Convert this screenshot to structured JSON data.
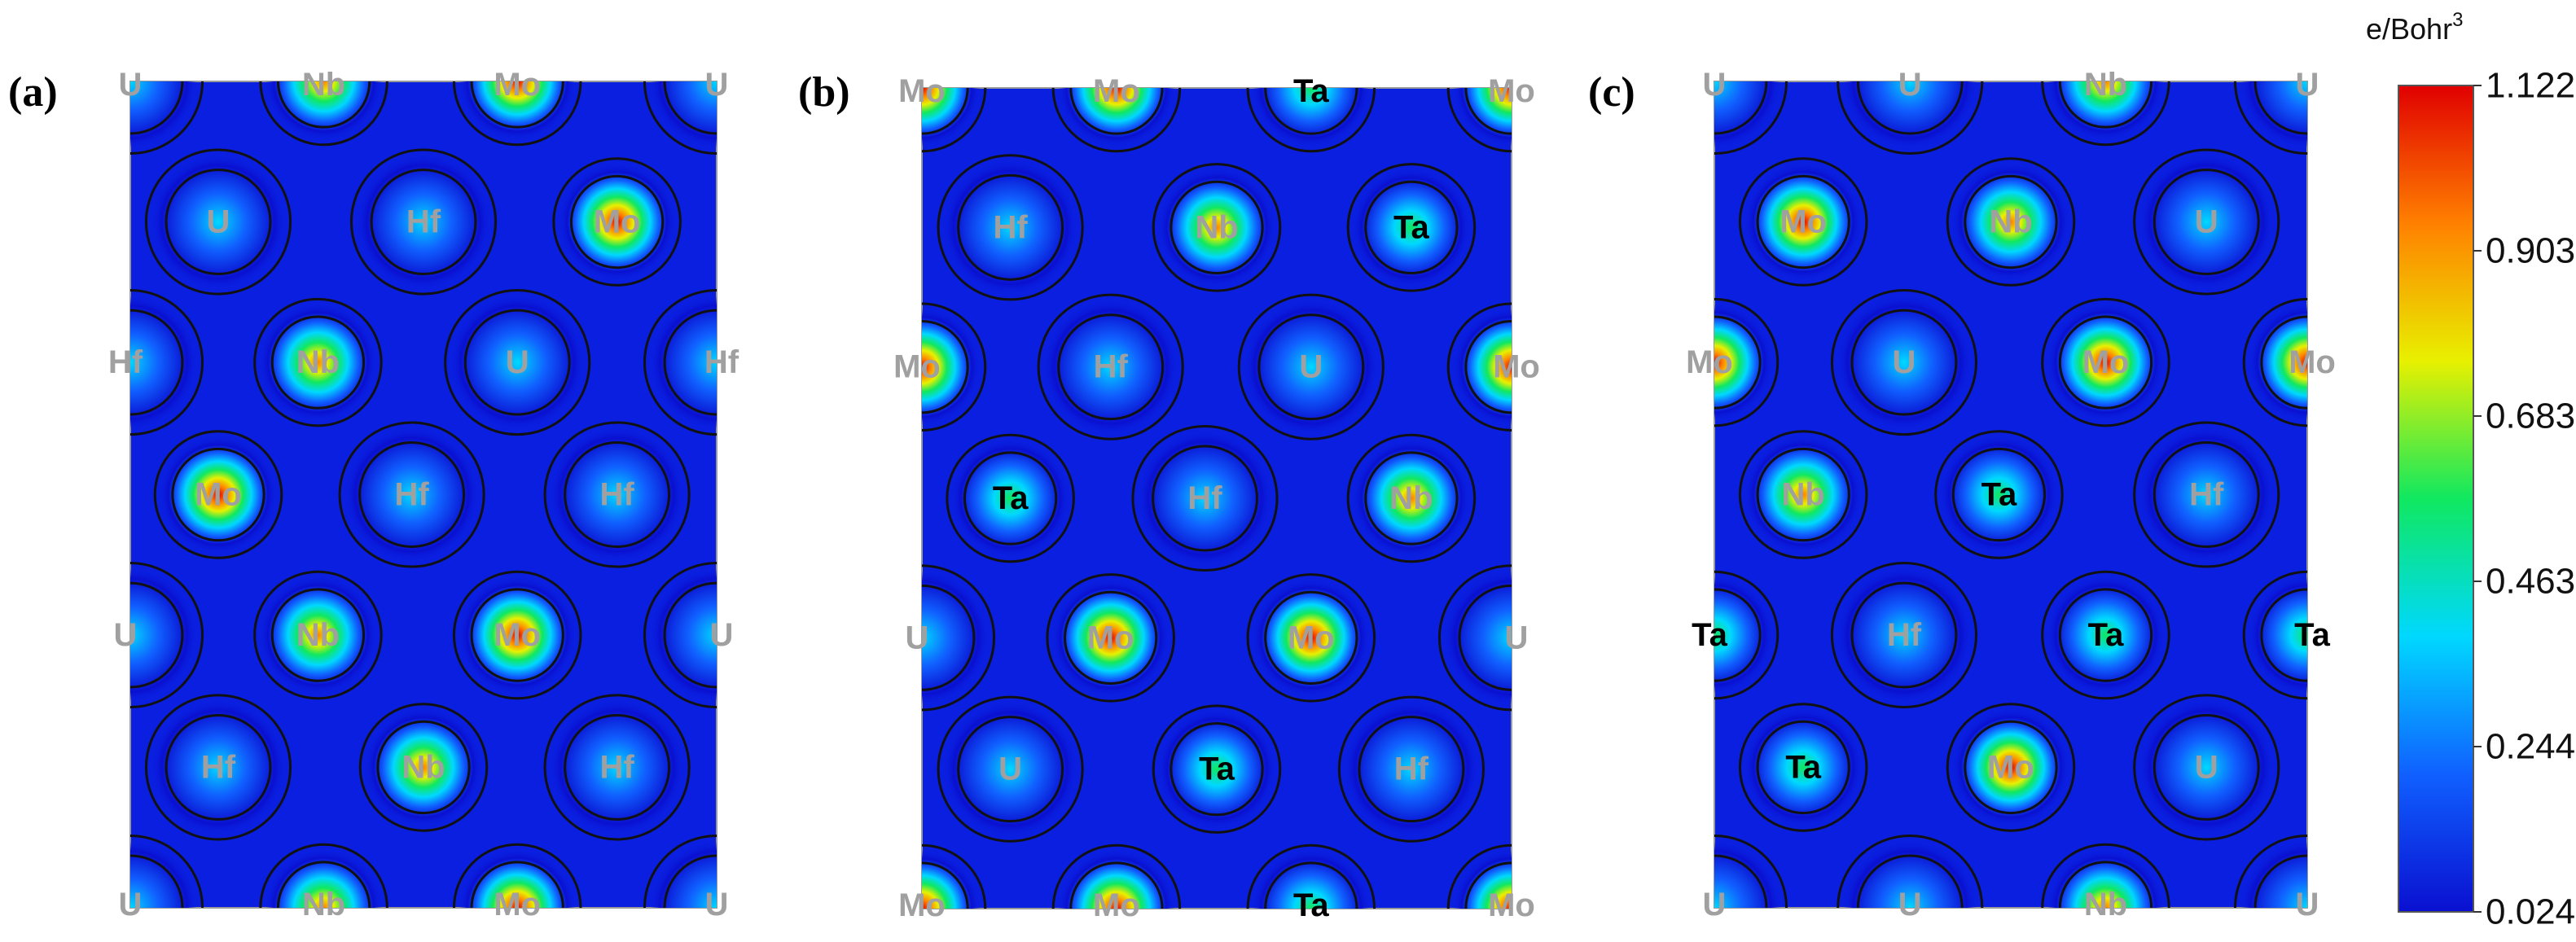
{
  "colors": {
    "background_blue": "#0a1fe0",
    "gray_label": "#a0a0a0",
    "black_label": "#000000",
    "colormap": [
      "#0a10d0",
      "#1060ff",
      "#00d8ff",
      "#10e860",
      "#e8f000",
      "#ff8000",
      "#e00000"
    ]
  },
  "colorbar": {
    "title": "e/Bohr",
    "title_sup": "3",
    "ticks": [
      "1.122",
      "0.903",
      "0.683",
      "0.463",
      "0.244",
      "0.024"
    ]
  },
  "element_levels": {
    "U": 0.38,
    "Hf": 0.4,
    "Ta": 0.55,
    "Nb": 0.82,
    "Mo": 0.93
  },
  "panels": [
    {
      "id": "a",
      "label": "(a)",
      "edge_labels": [
        {
          "text": "U",
          "color": "gray"
        },
        {
          "text": "Nb",
          "color": "gray"
        },
        {
          "text": "Mo",
          "color": "gray"
        },
        {
          "text": "U",
          "color": "gray"
        },
        {
          "text": "Hf",
          "color": "gray"
        },
        {
          "text": "Hf",
          "color": "gray"
        },
        {
          "text": "U",
          "color": "gray"
        },
        {
          "text": "U",
          "color": "gray"
        },
        {
          "text": "U",
          "color": "gray"
        },
        {
          "text": "Nb",
          "color": "gray"
        },
        {
          "text": "Mo",
          "color": "gray"
        },
        {
          "text": "U",
          "color": "gray"
        }
      ],
      "atoms": [
        {
          "el": "U",
          "label": "U",
          "color": "gray"
        },
        {
          "el": "Hf",
          "label": "Hf",
          "color": "gray"
        },
        {
          "el": "Mo",
          "label": "Mo",
          "color": "gray"
        },
        {
          "el": "Nb",
          "label": "Nb",
          "color": "gray"
        },
        {
          "el": "U",
          "label": "U",
          "color": "gray"
        },
        {
          "el": "Mo",
          "label": "Mo",
          "color": "gray"
        },
        {
          "el": "Hf",
          "label": "Hf",
          "color": "gray"
        },
        {
          "el": "Hf",
          "label": "Hf",
          "color": "gray"
        },
        {
          "el": "Nb",
          "label": "Nb",
          "color": "gray"
        },
        {
          "el": "Mo",
          "label": "Mo",
          "color": "gray"
        },
        {
          "el": "Hf",
          "label": "Hf",
          "color": "gray"
        },
        {
          "el": "Nb",
          "label": "Nb",
          "color": "gray"
        },
        {
          "el": "Hf",
          "label": "Hf",
          "color": "gray"
        }
      ]
    },
    {
      "id": "b",
      "label": "(b)",
      "edge_labels": [
        {
          "text": "Mo",
          "color": "gray"
        },
        {
          "text": "Mo",
          "color": "gray"
        },
        {
          "text": "Ta",
          "color": "black"
        },
        {
          "text": "Mo",
          "color": "gray"
        },
        {
          "text": "Mo",
          "color": "gray"
        },
        {
          "text": "Mo",
          "color": "gray"
        },
        {
          "text": "U",
          "color": "gray"
        },
        {
          "text": "U",
          "color": "gray"
        },
        {
          "text": "Mo",
          "color": "gray"
        },
        {
          "text": "Mo",
          "color": "gray"
        },
        {
          "text": "Ta",
          "color": "black"
        },
        {
          "text": "Mo",
          "color": "gray"
        }
      ],
      "atoms": [
        {
          "el": "Hf",
          "label": "Hf",
          "color": "gray"
        },
        {
          "el": "Nb",
          "label": "Nb",
          "color": "gray"
        },
        {
          "el": "Ta",
          "label": "Ta",
          "color": "black"
        },
        {
          "el": "Hf",
          "label": "Hf",
          "color": "gray"
        },
        {
          "el": "U",
          "label": "U",
          "color": "gray"
        },
        {
          "el": "Ta",
          "label": "Ta",
          "color": "black"
        },
        {
          "el": "Hf",
          "label": "Hf",
          "color": "gray"
        },
        {
          "el": "Nb",
          "label": "Nb",
          "color": "gray"
        },
        {
          "el": "Mo",
          "label": "Mo",
          "color": "gray"
        },
        {
          "el": "Mo",
          "label": "Mo",
          "color": "gray"
        },
        {
          "el": "U",
          "label": "U",
          "color": "gray"
        },
        {
          "el": "Ta",
          "label": "Ta",
          "color": "black"
        },
        {
          "el": "Hf",
          "label": "Hf",
          "color": "gray"
        }
      ]
    },
    {
      "id": "c",
      "label": "(c)",
      "edge_labels": [
        {
          "text": "U",
          "color": "gray"
        },
        {
          "text": "U",
          "color": "gray"
        },
        {
          "text": "Nb",
          "color": "gray"
        },
        {
          "text": "U",
          "color": "gray"
        },
        {
          "text": "Mo",
          "color": "gray"
        },
        {
          "text": "Mo",
          "color": "gray"
        },
        {
          "text": "Ta",
          "color": "black"
        },
        {
          "text": "Ta",
          "color": "black"
        },
        {
          "text": "U",
          "color": "gray"
        },
        {
          "text": "U",
          "color": "gray"
        },
        {
          "text": "Nb",
          "color": "gray"
        },
        {
          "text": "U",
          "color": "gray"
        }
      ],
      "atoms": [
        {
          "el": "Mo",
          "label": "Mo",
          "color": "gray"
        },
        {
          "el": "Nb",
          "label": "Nb",
          "color": "gray"
        },
        {
          "el": "U",
          "label": "U",
          "color": "gray"
        },
        {
          "el": "U",
          "label": "U",
          "color": "gray"
        },
        {
          "el": "Mo",
          "label": "Mo",
          "color": "gray"
        },
        {
          "el": "Nb",
          "label": "Nb",
          "color": "gray"
        },
        {
          "el": "Ta",
          "label": "Ta",
          "color": "black"
        },
        {
          "el": "Hf",
          "label": "Hf",
          "color": "gray"
        },
        {
          "el": "Hf",
          "label": "Hf",
          "color": "gray"
        },
        {
          "el": "Ta",
          "label": "Ta",
          "color": "black"
        },
        {
          "el": "Ta",
          "label": "Ta",
          "color": "black"
        },
        {
          "el": "Mo",
          "label": "Mo",
          "color": "gray"
        },
        {
          "el": "U",
          "label": "U",
          "color": "gray"
        }
      ]
    }
  ]
}
